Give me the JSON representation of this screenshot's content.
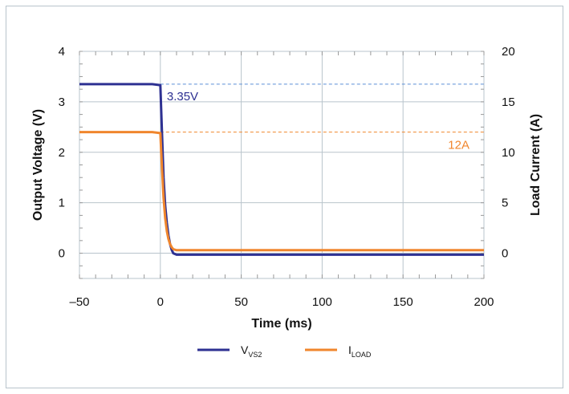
{
  "chart_data": {
    "type": "line",
    "xlabel": "Time (ms)",
    "ylabel_left": "Output Voltage (V)",
    "ylabel_right": "Load Current (A)",
    "xlim": [
      -50,
      200
    ],
    "ylim_left": [
      -0.5,
      4
    ],
    "ylim_right": [
      -2.5,
      20
    ],
    "x_ticks": [
      -50,
      0,
      50,
      100,
      150,
      200
    ],
    "x_tick_labels": [
      "–50",
      "0",
      "50",
      "100",
      "150",
      "200"
    ],
    "y_left_ticks": [
      0,
      1,
      2,
      3,
      4
    ],
    "y_left_tick_labels": [
      "0",
      "1",
      "2",
      "3",
      "4"
    ],
    "y_right_ticks": [
      0,
      5,
      10,
      15,
      20
    ],
    "y_right_tick_labels": [
      "0",
      "5",
      "10",
      "15",
      "20"
    ],
    "grid": true,
    "legend_position": "bottom",
    "series": [
      {
        "name_main": "V",
        "name_sub": "VS2",
        "axis": "left",
        "color": "#2e3192",
        "x": [
          -50,
          -5,
          0,
          1,
          2,
          3,
          4,
          5,
          6,
          7,
          8,
          10,
          15,
          200
        ],
        "y": [
          3.35,
          3.35,
          3.33,
          2.4,
          1.5,
          0.95,
          0.6,
          0.35,
          0.18,
          0.07,
          0.0,
          -0.03,
          -0.03,
          -0.03
        ]
      },
      {
        "name_main": "I",
        "name_sub": "LOAD",
        "axis": "right",
        "color": "#f0862d",
        "x": [
          -50,
          -5,
          0,
          1,
          2,
          3,
          4,
          5,
          6,
          7,
          8,
          10,
          15,
          200
        ],
        "y": [
          12,
          12,
          11.9,
          8.5,
          5.5,
          3.5,
          2.2,
          1.4,
          0.9,
          0.6,
          0.4,
          0.3,
          0.3,
          0.3
        ]
      }
    ],
    "reference_lines": [
      {
        "axis": "left",
        "value": 3.35,
        "color": "#5b8fd6"
      },
      {
        "axis": "right",
        "value": 12,
        "color": "#f0862d"
      }
    ],
    "annotations": [
      {
        "text": "3.35V",
        "color": "#2e3192"
      },
      {
        "text": "12A",
        "color": "#f0862d"
      }
    ]
  }
}
